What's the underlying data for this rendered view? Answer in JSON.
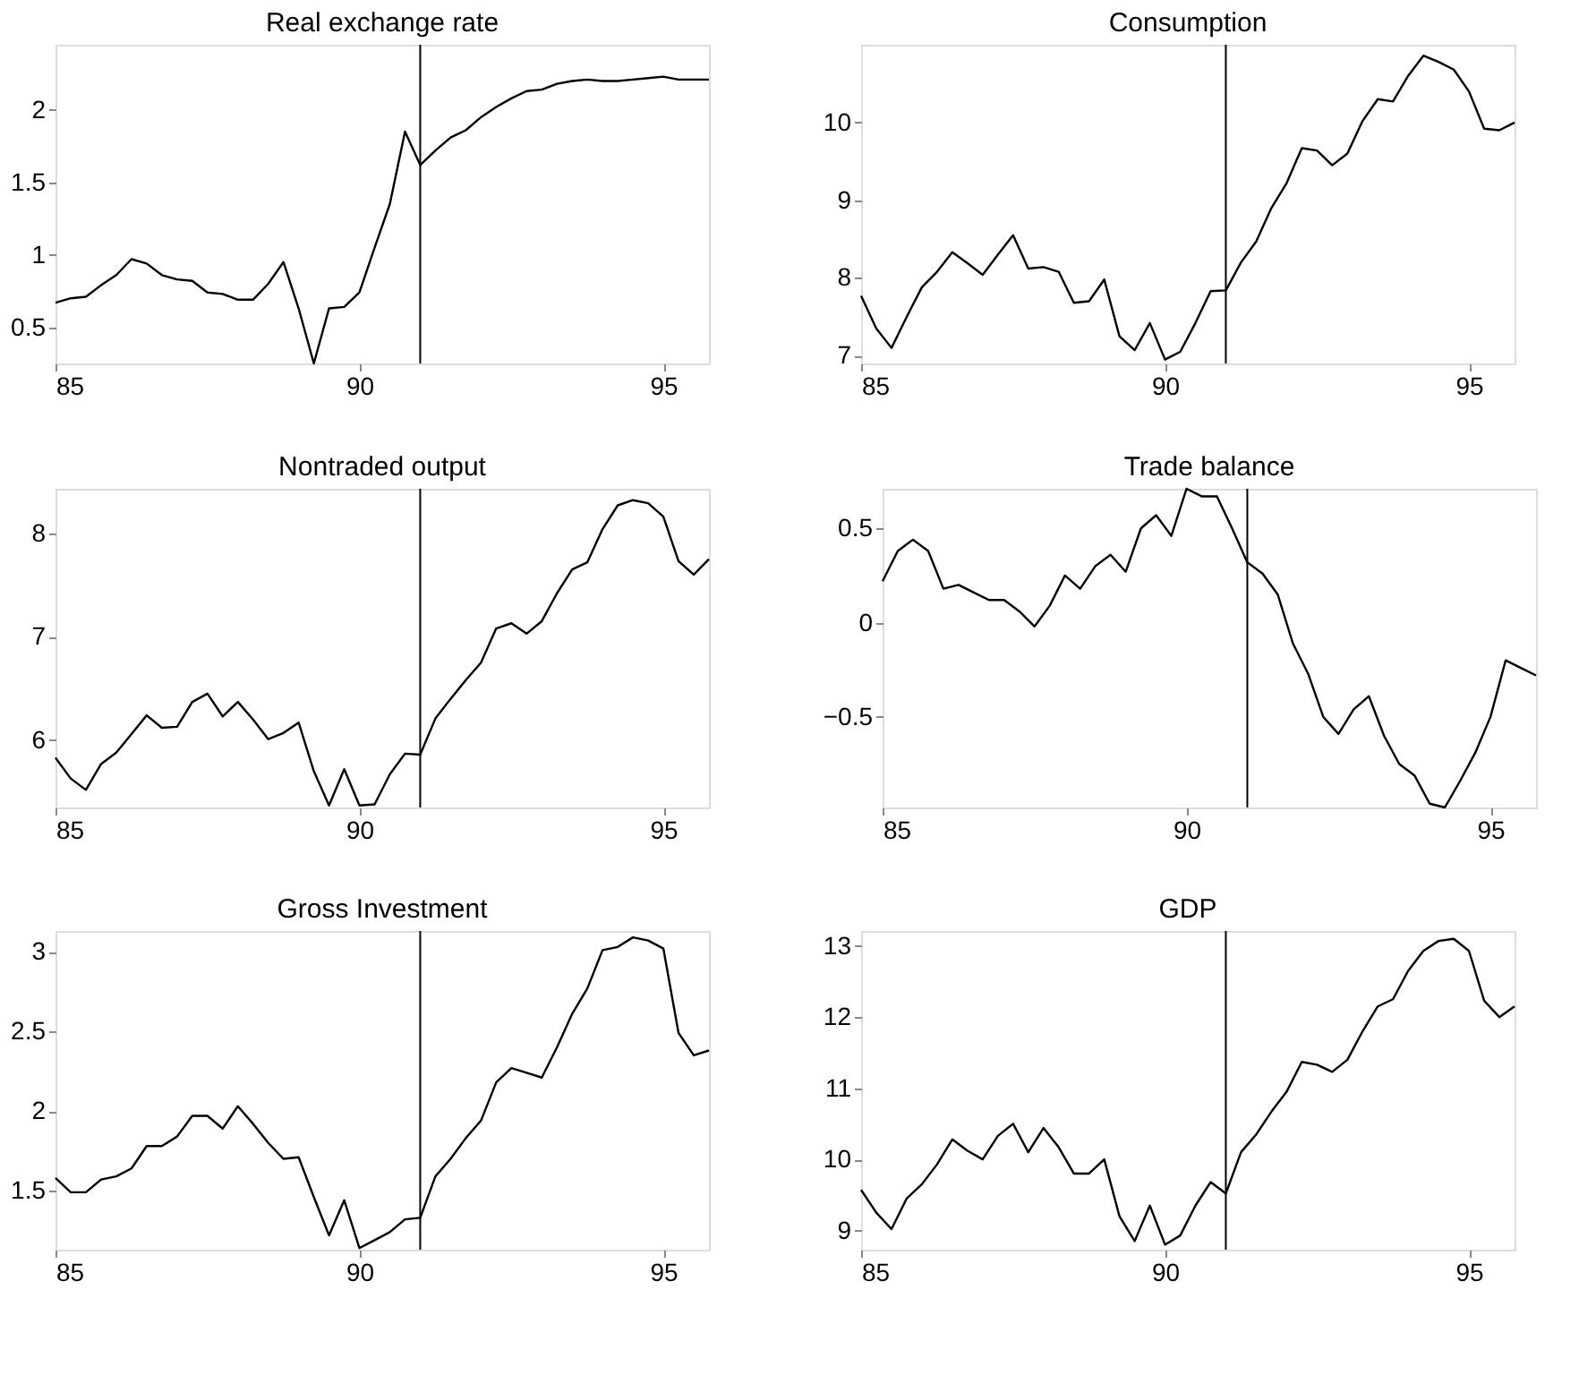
{
  "chart_data": [
    {
      "type": "line",
      "title": "Real exchange rate",
      "x": [
        85,
        85.25,
        85.5,
        85.75,
        86,
        86.25,
        86.5,
        86.75,
        87,
        87.25,
        87.5,
        87.75,
        88,
        88.25,
        88.5,
        88.75,
        89,
        89.25,
        89.5,
        89.75,
        90,
        90.25,
        90.5,
        90.75,
        91,
        91.25,
        91.5,
        91.75,
        92,
        92.25,
        92.5,
        92.75,
        93,
        93.25,
        93.5,
        93.75,
        94,
        94.25,
        94.5,
        94.75,
        95,
        95.25,
        95.5,
        95.75
      ],
      "series": [
        {
          "color": "#000000",
          "values": [
            0.67,
            0.7,
            0.71,
            0.79,
            0.86,
            0.97,
            0.94,
            0.86,
            0.83,
            0.82,
            0.74,
            0.73,
            0.69,
            0.69,
            0.8,
            0.95,
            0.63,
            0.25,
            0.63,
            0.64,
            0.74,
            1.05,
            1.35,
            1.85,
            1.62,
            1.72,
            1.81,
            1.86,
            1.95,
            2.02,
            2.08,
            2.13,
            2.14,
            2.18,
            2.2,
            2.21,
            2.2,
            2.2,
            2.21,
            2.22,
            2.23,
            2.21,
            2.21,
            2.21
          ]
        }
      ],
      "xlim": [
        85,
        95.75
      ],
      "ylim": [
        0.25,
        2.45
      ],
      "xticks": [
        85,
        90,
        95
      ],
      "yticks": [
        0.5,
        1,
        1.5,
        2
      ],
      "ref_lines": [
        {
          "axis": "x",
          "value": 91,
          "color": "#000000"
        }
      ],
      "grid": false
    },
    {
      "type": "line",
      "title": "Consumption",
      "x": [
        85,
        85.25,
        85.5,
        85.75,
        86,
        86.25,
        86.5,
        86.75,
        87,
        87.25,
        87.5,
        87.75,
        88,
        88.25,
        88.5,
        88.75,
        89,
        89.25,
        89.5,
        89.75,
        90,
        90.25,
        90.5,
        90.75,
        91,
        91.25,
        91.5,
        91.75,
        92,
        92.25,
        92.5,
        92.75,
        93,
        93.25,
        93.5,
        93.75,
        94,
        94.25,
        94.5,
        94.75,
        95,
        95.25,
        95.5,
        95.75
      ],
      "series": [
        {
          "color": "#000000",
          "values": [
            7.77,
            7.35,
            7.1,
            7.5,
            7.88,
            8.08,
            8.33,
            8.19,
            8.04,
            8.3,
            8.55,
            8.12,
            8.14,
            8.08,
            7.68,
            7.7,
            7.98,
            7.25,
            7.07,
            7.42,
            6.95,
            7.05,
            7.42,
            7.83,
            7.84,
            8.2,
            8.47,
            8.9,
            9.22,
            9.67,
            9.64,
            9.45,
            9.6,
            10.02,
            10.3,
            10.27,
            10.6,
            10.86,
            10.78,
            10.68,
            10.4,
            9.92,
            9.9,
            10.0
          ]
        }
      ],
      "xlim": [
        85,
        95.75
      ],
      "ylim": [
        6.9,
        11
      ],
      "xticks": [
        85,
        90,
        95
      ],
      "yticks": [
        7,
        8,
        9,
        10
      ],
      "ref_lines": [
        {
          "axis": "x",
          "value": 91,
          "color": "#000000"
        }
      ],
      "grid": false
    },
    {
      "type": "line",
      "title": "Nontraded output",
      "x": [
        85,
        85.25,
        85.5,
        85.75,
        86,
        86.25,
        86.5,
        86.75,
        87,
        87.25,
        87.5,
        87.75,
        88,
        88.25,
        88.5,
        88.75,
        89,
        89.25,
        89.5,
        89.75,
        90,
        90.25,
        90.5,
        90.75,
        91,
        91.25,
        91.5,
        91.75,
        92,
        92.25,
        92.5,
        92.75,
        93,
        93.25,
        93.5,
        93.75,
        94,
        94.25,
        94.5,
        94.75,
        95,
        95.25,
        95.5,
        95.75
      ],
      "series": [
        {
          "color": "#000000",
          "values": [
            5.83,
            5.63,
            5.52,
            5.77,
            5.88,
            6.06,
            6.24,
            6.12,
            6.13,
            6.37,
            6.45,
            6.23,
            6.37,
            6.2,
            6.01,
            6.07,
            6.17,
            5.7,
            5.37,
            5.72,
            5.37,
            5.38,
            5.67,
            5.87,
            5.86,
            6.21,
            6.4,
            6.58,
            6.75,
            7.08,
            7.13,
            7.03,
            7.15,
            7.42,
            7.65,
            7.72,
            8.04,
            8.27,
            8.32,
            8.29,
            8.16,
            7.73,
            7.6,
            7.75
          ]
        }
      ],
      "xlim": [
        85,
        95.75
      ],
      "ylim": [
        5.35,
        8.43
      ],
      "xticks": [
        85,
        90,
        95
      ],
      "yticks": [
        6,
        7,
        8
      ],
      "ref_lines": [
        {
          "axis": "x",
          "value": 91,
          "color": "#000000"
        }
      ],
      "grid": false
    },
    {
      "type": "line",
      "title": "Trade balance",
      "x": [
        85,
        85.25,
        85.5,
        85.75,
        86,
        86.25,
        86.5,
        86.75,
        87,
        87.25,
        87.5,
        87.75,
        88,
        88.25,
        88.5,
        88.75,
        89,
        89.25,
        89.5,
        89.75,
        90,
        90.25,
        90.5,
        90.75,
        91,
        91.25,
        91.5,
        91.75,
        92,
        92.25,
        92.5,
        92.75,
        93,
        93.25,
        93.5,
        93.75,
        94,
        94.25,
        94.5,
        94.75,
        95,
        95.25,
        95.5,
        95.75
      ],
      "series": [
        {
          "color": "#000000",
          "values": [
            0.22,
            0.38,
            0.44,
            0.38,
            0.18,
            0.2,
            0.16,
            0.12,
            0.12,
            0.06,
            -0.02,
            0.09,
            0.25,
            0.18,
            0.3,
            0.36,
            0.27,
            0.5,
            0.57,
            0.46,
            0.71,
            0.67,
            0.67,
            0.5,
            0.32,
            0.26,
            0.15,
            -0.11,
            -0.27,
            -0.5,
            -0.59,
            -0.46,
            -0.39,
            -0.6,
            -0.75,
            -0.81,
            -0.96,
            -0.98,
            -0.84,
            -0.69,
            -0.5,
            -0.2,
            -0.24,
            -0.28
          ]
        }
      ],
      "xlim": [
        85,
        95.75
      ],
      "ylim": [
        -0.98,
        0.71
      ],
      "xticks": [
        85,
        90,
        95
      ],
      "yticks": [
        -0.5,
        0,
        0.5
      ],
      "ref_lines": [
        {
          "axis": "x",
          "value": 91,
          "color": "#000000"
        }
      ],
      "grid": false
    },
    {
      "type": "line",
      "title": "Gross Investment",
      "x": [
        85,
        85.25,
        85.5,
        85.75,
        86,
        86.25,
        86.5,
        86.75,
        87,
        87.25,
        87.5,
        87.75,
        88,
        88.25,
        88.5,
        88.75,
        89,
        89.25,
        89.5,
        89.75,
        90,
        90.25,
        90.5,
        90.75,
        91,
        91.25,
        91.5,
        91.75,
        92,
        92.25,
        92.5,
        92.75,
        93,
        93.25,
        93.5,
        93.75,
        94,
        94.25,
        94.5,
        94.75,
        95,
        95.25,
        95.5,
        95.75
      ],
      "series": [
        {
          "color": "#000000",
          "values": [
            1.58,
            1.49,
            1.49,
            1.57,
            1.59,
            1.64,
            1.78,
            1.78,
            1.84,
            1.97,
            1.97,
            1.89,
            2.03,
            1.92,
            1.8,
            1.7,
            1.71,
            1.46,
            1.22,
            1.44,
            1.14,
            1.19,
            1.24,
            1.32,
            1.33,
            1.59,
            1.7,
            1.83,
            1.94,
            2.18,
            2.27,
            2.24,
            2.21,
            2.4,
            2.61,
            2.77,
            3.01,
            3.03,
            3.09,
            3.07,
            3.02,
            2.49,
            2.35,
            2.38
          ]
        }
      ],
      "xlim": [
        85,
        95.75
      ],
      "ylim": [
        1.13,
        3.13
      ],
      "xticks": [
        85,
        90,
        95
      ],
      "yticks": [
        1.5,
        2,
        2.5,
        3
      ],
      "ref_lines": [
        {
          "axis": "x",
          "value": 91,
          "color": "#000000"
        }
      ],
      "grid": false
    },
    {
      "type": "line",
      "title": "GDP",
      "x": [
        85,
        85.25,
        85.5,
        85.75,
        86,
        86.25,
        86.5,
        86.75,
        87,
        87.25,
        87.5,
        87.75,
        88,
        88.25,
        88.5,
        88.75,
        89,
        89.25,
        89.5,
        89.75,
        90,
        90.25,
        90.5,
        90.75,
        91,
        91.25,
        91.5,
        91.75,
        92,
        92.25,
        92.5,
        92.75,
        93,
        93.25,
        93.5,
        93.75,
        94,
        94.25,
        94.5,
        94.75,
        95,
        95.25,
        95.5,
        95.75
      ],
      "series": [
        {
          "color": "#000000",
          "values": [
            9.57,
            9.25,
            9.02,
            9.45,
            9.65,
            9.93,
            10.28,
            10.12,
            10.0,
            10.33,
            10.5,
            10.1,
            10.44,
            10.17,
            9.8,
            9.8,
            10.0,
            9.2,
            8.85,
            9.35,
            8.8,
            8.93,
            9.35,
            9.68,
            9.52,
            10.1,
            10.35,
            10.67,
            10.95,
            11.37,
            11.33,
            11.23,
            11.4,
            11.8,
            12.15,
            12.25,
            12.65,
            12.93,
            13.07,
            13.1,
            12.93,
            12.23,
            12.0,
            12.15
          ]
        }
      ],
      "xlim": [
        85,
        95.75
      ],
      "ylim": [
        8.73,
        13.21
      ],
      "xticks": [
        85,
        90,
        95
      ],
      "yticks": [
        9,
        10,
        11,
        12,
        13
      ],
      "ref_lines": [
        {
          "axis": "x",
          "value": 91,
          "color": "#000000"
        }
      ],
      "grid": false
    }
  ]
}
